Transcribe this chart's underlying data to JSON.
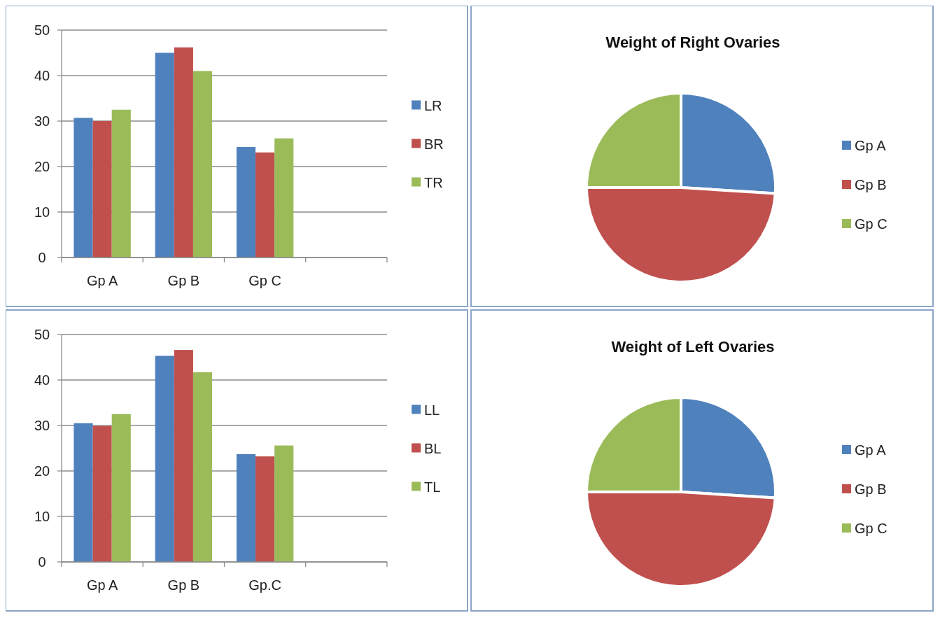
{
  "chart_data": [
    {
      "type": "bar",
      "categories": [
        "Gp A",
        "Gp B",
        "Gp C",
        null
      ],
      "series": [
        {
          "name": "LR",
          "color": "#4f81bd",
          "values": [
            30.7,
            45.0,
            24.3,
            null
          ]
        },
        {
          "name": "BR",
          "color": "#c0504d",
          "values": [
            30.0,
            46.2,
            23.1,
            null
          ]
        },
        {
          "name": "TR",
          "color": "#9bbb59",
          "values": [
            32.5,
            41.0,
            26.2,
            null
          ]
        }
      ],
      "ylim": [
        0,
        50
      ],
      "yticks": [
        0,
        10,
        20,
        30,
        40,
        50
      ],
      "grid": "y",
      "legend": "right"
    },
    {
      "type": "pie",
      "title": "Weight of Right Ovaries",
      "categories": [
        "Gp A",
        "Gp B",
        "Gp C"
      ],
      "values": [
        26,
        49,
        25
      ],
      "colors": [
        "#4f81bd",
        "#c0504d",
        "#9bbb59"
      ],
      "legend": "right"
    },
    {
      "type": "bar",
      "categories": [
        "Gp A",
        "Gp B",
        "Gp.C",
        null
      ],
      "series": [
        {
          "name": "LL",
          "color": "#4f81bd",
          "values": [
            30.5,
            45.3,
            23.7,
            null
          ]
        },
        {
          "name": "BL",
          "color": "#c0504d",
          "values": [
            29.9,
            46.6,
            23.2,
            null
          ]
        },
        {
          "name": "TL",
          "color": "#9bbb59",
          "values": [
            32.5,
            41.7,
            25.6,
            null
          ]
        }
      ],
      "ylim": [
        0,
        50
      ],
      "yticks": [
        0,
        10,
        20,
        30,
        40,
        50
      ],
      "grid": "y",
      "legend": "right"
    },
    {
      "type": "pie",
      "title": "Weight of Left Ovaries",
      "categories": [
        "Gp A",
        "Gp B",
        "Gp C"
      ],
      "values": [
        26,
        49,
        25
      ],
      "colors": [
        "#4f81bd",
        "#c0504d",
        "#9bbb59"
      ],
      "legend": "right"
    }
  ]
}
